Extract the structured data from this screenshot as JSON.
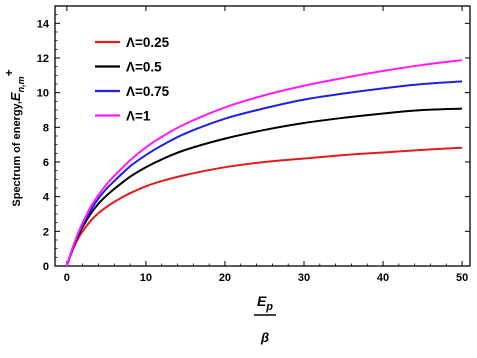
{
  "chart_data": {
    "type": "line",
    "ylabel": {
      "main": "Spectrum of energy,",
      "symbol": "E",
      "subscript": "n,m",
      "superscript": "+"
    },
    "xlabel": {
      "numerator_symbol": "E",
      "numerator_subscript": "p",
      "denominator": "β"
    },
    "xlim": [
      -1.5,
      51
    ],
    "ylim": [
      0,
      15
    ],
    "x_ticks": [
      0,
      10,
      20,
      30,
      40,
      50
    ],
    "y_ticks": [
      0,
      2,
      4,
      6,
      8,
      10,
      12,
      14
    ],
    "grid": false,
    "legend_position": "top-left",
    "x": [
      0,
      0.5,
      1,
      1.5,
      2,
      3,
      4,
      5,
      6,
      8,
      10,
      12,
      15,
      20,
      25,
      30,
      35,
      40,
      45,
      50
    ],
    "series": [
      {
        "name": "Λ=0.25",
        "color": "#e41a1c",
        "values": [
          0,
          0.65,
          1.2,
          1.65,
          2.0,
          2.6,
          3.05,
          3.4,
          3.7,
          4.2,
          4.6,
          4.9,
          5.25,
          5.7,
          6.0,
          6.2,
          6.4,
          6.55,
          6.7,
          6.82
        ]
      },
      {
        "name": "Λ=0.5",
        "color": "#000000",
        "values": [
          0,
          0.7,
          1.3,
          1.8,
          2.25,
          3.0,
          3.6,
          4.05,
          4.45,
          5.15,
          5.7,
          6.15,
          6.7,
          7.35,
          7.85,
          8.25,
          8.55,
          8.8,
          9.0,
          9.08
        ]
      },
      {
        "name": "Λ=0.75",
        "color": "#1f1fe5",
        "values": [
          0,
          0.72,
          1.35,
          1.9,
          2.4,
          3.2,
          3.9,
          4.45,
          4.9,
          5.75,
          6.4,
          6.95,
          7.65,
          8.5,
          9.1,
          9.6,
          9.95,
          10.25,
          10.5,
          10.65
        ]
      },
      {
        "name": "Λ=1",
        "color": "#ff1aff",
        "values": [
          0,
          0.75,
          1.4,
          2.0,
          2.5,
          3.4,
          4.1,
          4.7,
          5.2,
          6.1,
          6.85,
          7.45,
          8.2,
          9.15,
          9.85,
          10.4,
          10.85,
          11.25,
          11.6,
          11.88
        ]
      }
    ]
  }
}
